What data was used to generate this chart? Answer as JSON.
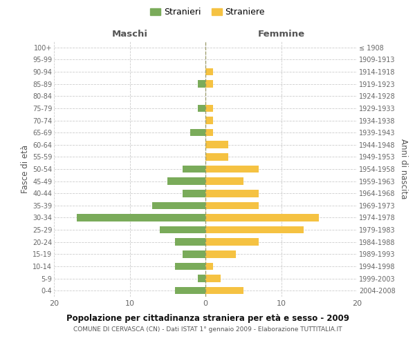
{
  "age_groups": [
    "0-4",
    "5-9",
    "10-14",
    "15-19",
    "20-24",
    "25-29",
    "30-34",
    "35-39",
    "40-44",
    "45-49",
    "50-54",
    "55-59",
    "60-64",
    "65-69",
    "70-74",
    "75-79",
    "80-84",
    "85-89",
    "90-94",
    "95-99",
    "100+"
  ],
  "birth_years": [
    "2004-2008",
    "1999-2003",
    "1994-1998",
    "1989-1993",
    "1984-1988",
    "1979-1983",
    "1974-1978",
    "1969-1973",
    "1964-1968",
    "1959-1963",
    "1954-1958",
    "1949-1953",
    "1944-1948",
    "1939-1943",
    "1934-1938",
    "1929-1933",
    "1924-1928",
    "1919-1923",
    "1914-1918",
    "1909-1913",
    "≤ 1908"
  ],
  "maschi": [
    4,
    1,
    4,
    3,
    4,
    6,
    17,
    7,
    3,
    5,
    3,
    0,
    0,
    2,
    0,
    1,
    0,
    1,
    0,
    0,
    0
  ],
  "femmine": [
    5,
    2,
    1,
    4,
    7,
    13,
    15,
    7,
    7,
    5,
    7,
    3,
    3,
    1,
    1,
    1,
    0,
    1,
    1,
    0,
    0
  ],
  "color_maschi": "#7aab5a",
  "color_femmine": "#f5c242",
  "title": "Popolazione per cittadinanza straniera per età e sesso - 2009",
  "subtitle": "COMUNE DI CERVASCA (CN) - Dati ISTAT 1° gennaio 2009 - Elaborazione TUTTITALIA.IT",
  "label_maschi": "Maschi",
  "label_femmine": "Femmine",
  "ylabel_left": "Fasce di età",
  "ylabel_right": "Anni di nascita",
  "legend_maschi": "Stranieri",
  "legend_femmine": "Straniere",
  "xlim": 20,
  "background_color": "#ffffff"
}
